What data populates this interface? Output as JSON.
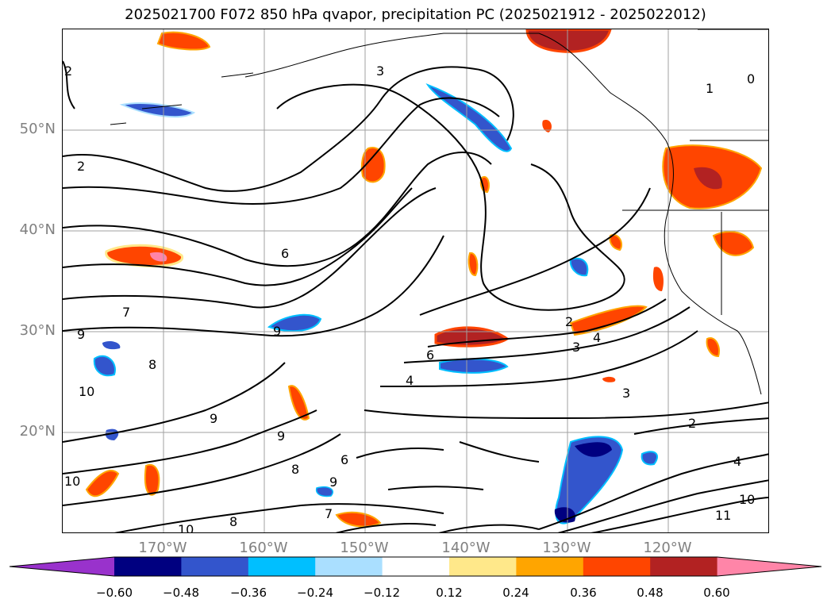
{
  "title": "2025021700 F072 850 hPa qvapor, precipitation PC (2025021912 - 2025022012)",
  "lat_labels": [
    {
      "label": "50°N",
      "lat": 50
    },
    {
      "label": "40°N",
      "lat": 40
    },
    {
      "label": "30°N",
      "lat": 30
    },
    {
      "label": "20°N",
      "lat": 20
    }
  ],
  "lon_labels": [
    {
      "label": "170°W",
      "lon": -170
    },
    {
      "label": "160°W",
      "lon": -160
    },
    {
      "label": "150°W",
      "lon": -150
    },
    {
      "label": "140°W",
      "lon": -140
    },
    {
      "label": "130°W",
      "lon": -130
    },
    {
      "label": "120°W",
      "lon": -120
    }
  ],
  "map_extent": {
    "lon": [
      -180,
      -110
    ],
    "lat": [
      10,
      60
    ]
  },
  "colorbar": {
    "colors": [
      "#9932cc",
      "#000080",
      "#3355cc",
      "#00bfff",
      "#aadfff",
      "#ffffff",
      "#ffe88a",
      "#ffa500",
      "#ff4500",
      "#b22222",
      "#ff85a8"
    ],
    "ticks": [
      "−0.60",
      "−0.48",
      "−0.36",
      "−0.24",
      "−0.12",
      "0.12",
      "0.24",
      "0.36",
      "0.48",
      "0.60"
    ]
  },
  "contour_labels": [
    "2",
    "3",
    "1",
    "0",
    "2",
    "6",
    "7",
    "9",
    "9",
    "8",
    "10",
    "10",
    "9",
    "6",
    "4",
    "2",
    "3",
    "4",
    "3",
    "2",
    "4",
    "10",
    "11",
    "9",
    "8",
    "6",
    "10",
    "8",
    "7",
    "9"
  ]
}
